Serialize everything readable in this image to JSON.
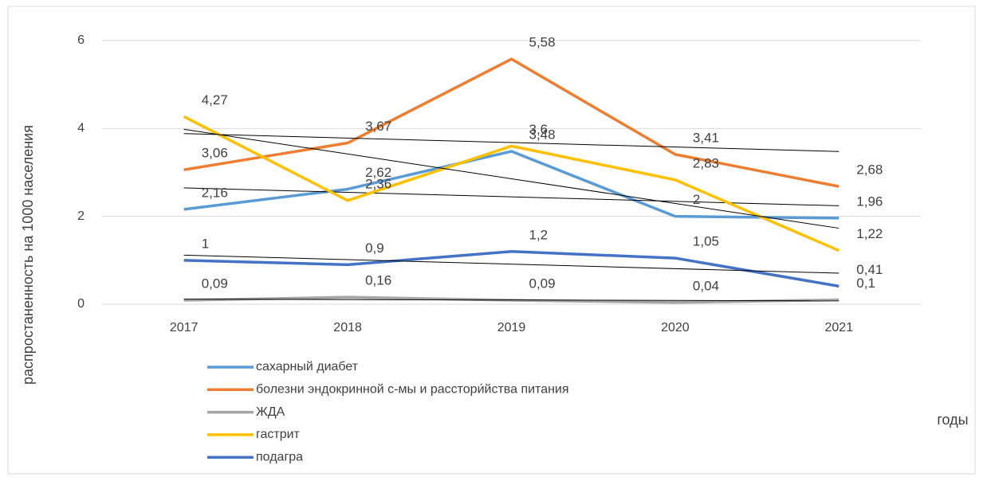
{
  "chart_data": {
    "type": "line",
    "y_label": "распростаненность на 1000 населения",
    "x_label": "годы",
    "categories": [
      "2017",
      "2018",
      "2019",
      "2020",
      "2021"
    ],
    "series": [
      {
        "name": "сахарный диабет",
        "color": "#5b9bd5",
        "values": [
          2.16,
          2.62,
          3.48,
          2,
          1.96
        ],
        "value_labels": [
          "2,16",
          "2,62",
          "3,48",
          "2",
          "1,96"
        ]
      },
      {
        "name": "болезни эндокринной с-мы и расстори́йства питания",
        "color": "#ed7d31",
        "values": [
          3.06,
          3.67,
          5.58,
          3.41,
          2.68
        ],
        "value_labels": [
          "3,06",
          "3,67",
          "5,58",
          "3,41",
          "2,68"
        ]
      },
      {
        "name": "ЖДА",
        "color": "#a5a5a5",
        "values": [
          0.09,
          0.16,
          0.09,
          0.04,
          0.1
        ],
        "value_labels": [
          "0,09",
          "0,16",
          "0,09",
          "0,04",
          "0,1"
        ]
      },
      {
        "name": "гастрит",
        "color": "#ffc000",
        "values": [
          4.27,
          2.36,
          3.6,
          2.83,
          1.22
        ],
        "value_labels": [
          "4,27",
          "2,36",
          "3,6",
          "2,83",
          "1,22"
        ]
      },
      {
        "name": "подагра",
        "color": "#4472c4",
        "values": [
          1,
          0.9,
          1.2,
          1.05,
          0.41
        ],
        "value_labels": [
          "1",
          "0,9",
          "1,2",
          "1,05",
          "0,41"
        ]
      }
    ],
    "ylim": [
      0,
      6
    ],
    "yticks": [
      0,
      2,
      4,
      6
    ],
    "grid": true,
    "trendline": true,
    "legend": "bottom"
  }
}
